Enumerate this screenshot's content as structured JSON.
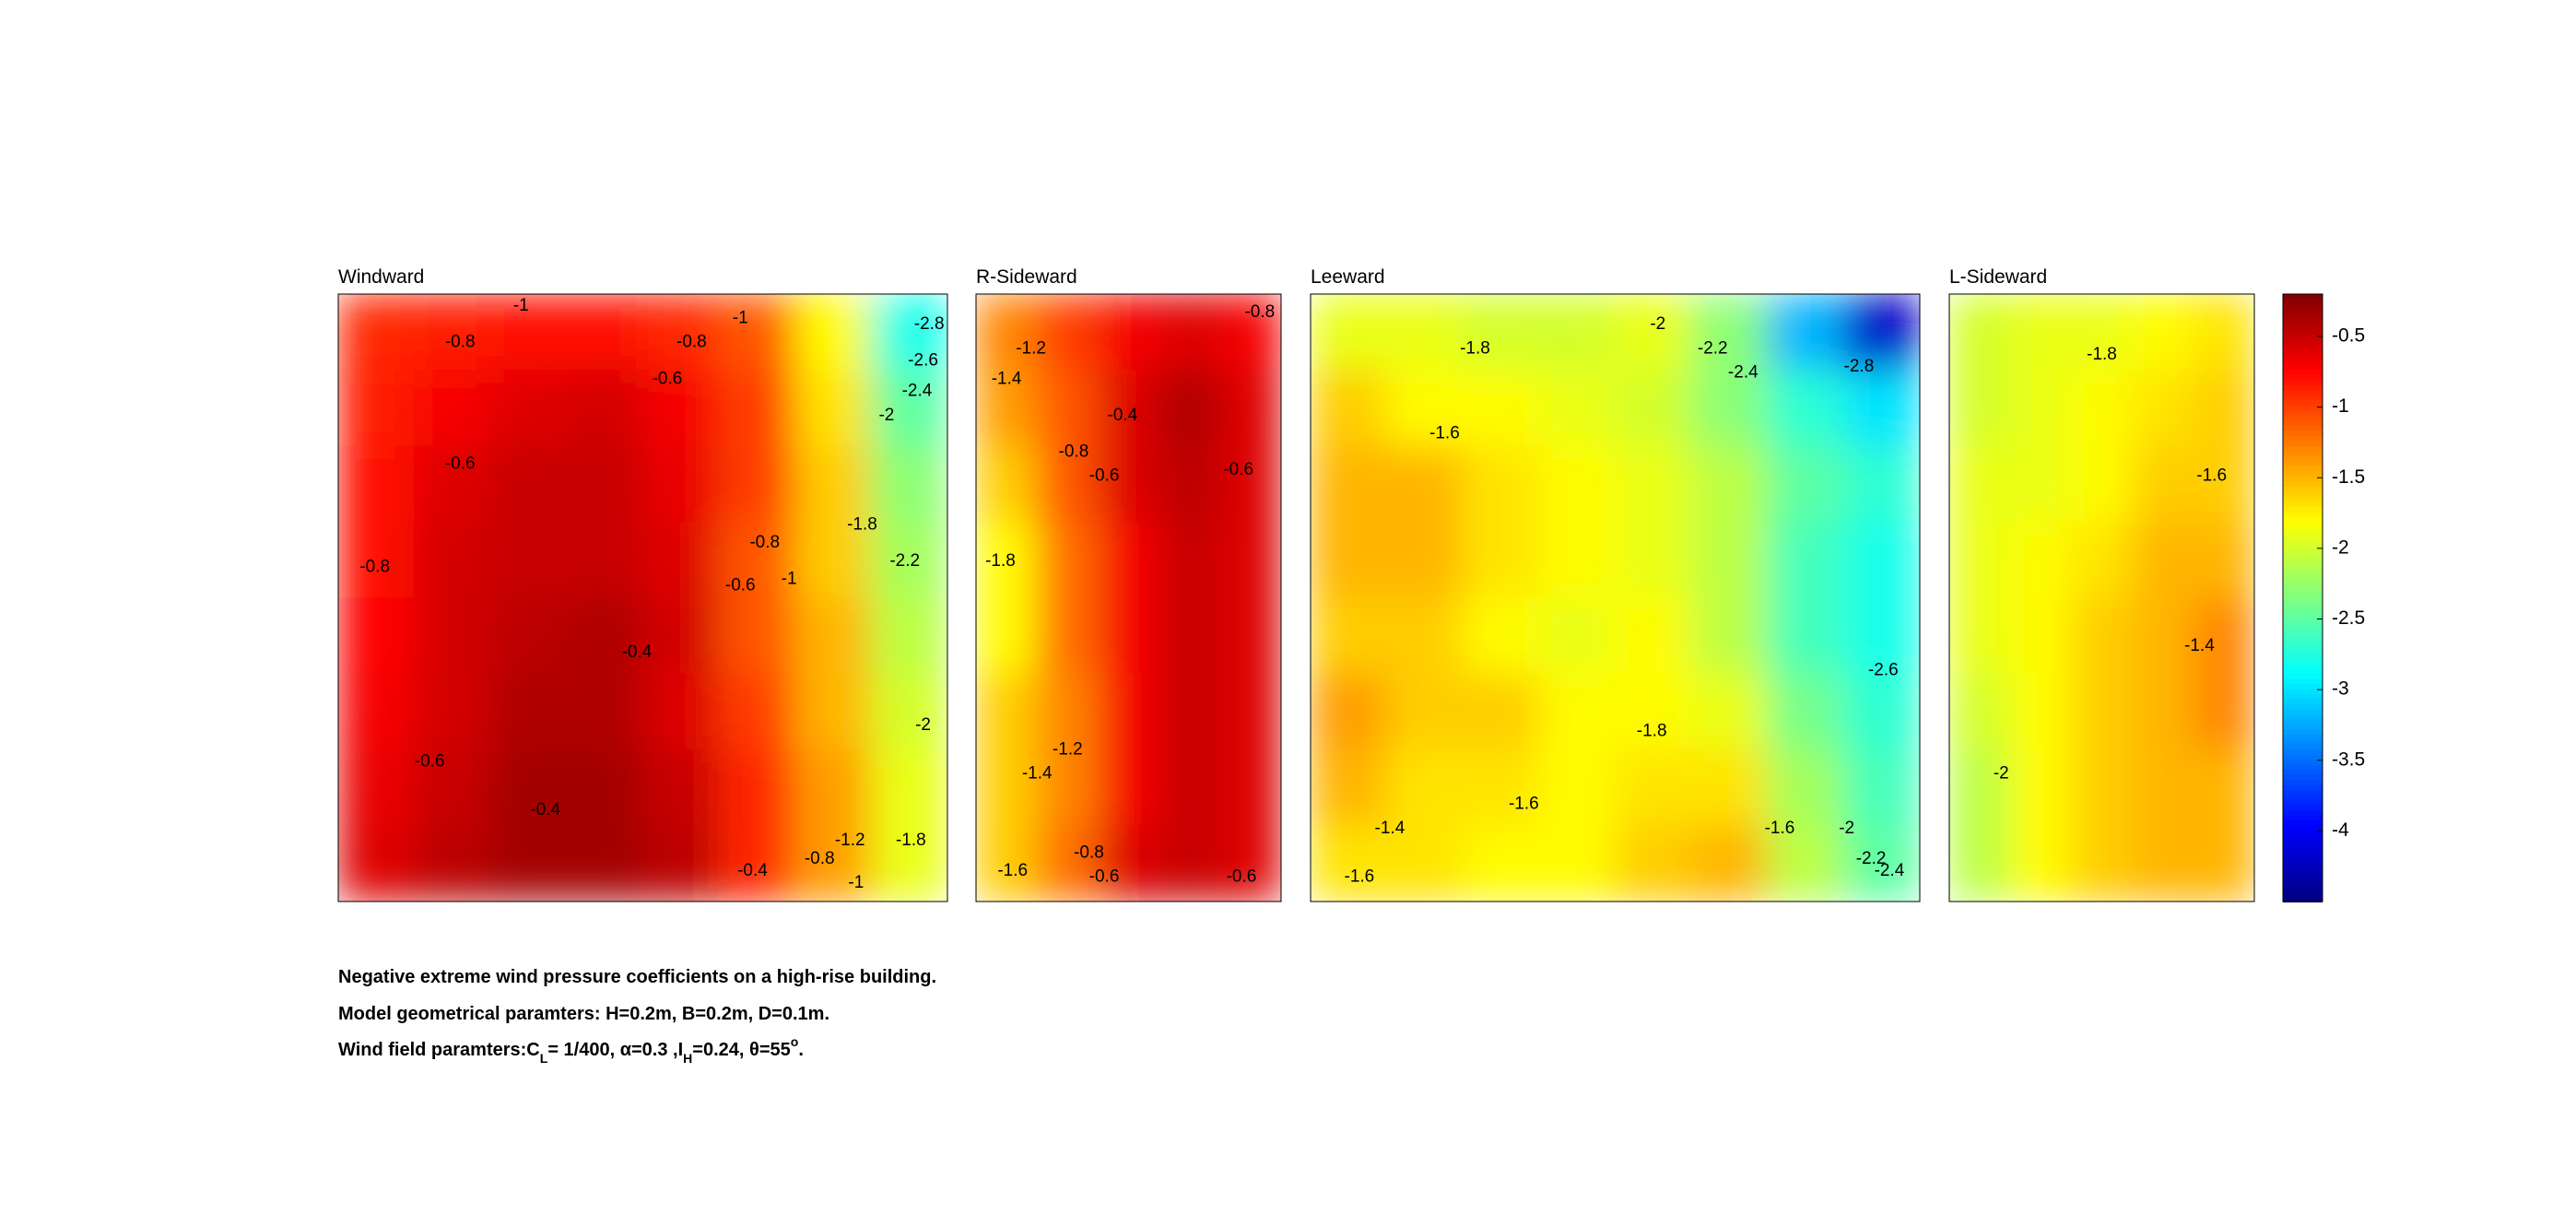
{
  "chart_data": {
    "type": "contour",
    "colormap": "jet",
    "clim": [
      -4.5,
      -0.2
    ],
    "colorbar_ticks": [
      -0.5,
      -1,
      -1.5,
      -2,
      -2.5,
      -3,
      -3.5,
      -4
    ],
    "panels": [
      {
        "title": "Windward",
        "z": [
          [
            -0.9,
            -0.85,
            -0.8,
            -0.8,
            -0.9,
            -1.1,
            -1.8,
            -2.8
          ],
          [
            -0.85,
            -0.7,
            -0.6,
            -0.55,
            -0.7,
            -1.0,
            -1.7,
            -2.5
          ],
          [
            -0.8,
            -0.6,
            -0.5,
            -0.5,
            -0.65,
            -1.0,
            -1.6,
            -2.3
          ],
          [
            -0.8,
            -0.55,
            -0.5,
            -0.5,
            -0.6,
            -1.1,
            -1.6,
            -2.2
          ],
          [
            -0.75,
            -0.55,
            -0.45,
            -0.4,
            -0.55,
            -1.1,
            -1.5,
            -2.1
          ],
          [
            -0.7,
            -0.55,
            -0.4,
            -0.4,
            -0.6,
            -1.0,
            -1.5,
            -2.0
          ],
          [
            -0.65,
            -0.5,
            -0.35,
            -0.35,
            -0.5,
            -0.9,
            -1.4,
            -1.9
          ],
          [
            -0.6,
            -0.45,
            -0.35,
            -0.35,
            -0.45,
            -0.9,
            -1.4,
            -1.9
          ]
        ],
        "contour_labels": [
          -1,
          -1,
          -0.8,
          -0.8,
          -0.6,
          -0.6,
          -0.8,
          -2.8,
          -2.6,
          -2.4,
          -2,
          -1.8,
          -0.8,
          -0.6,
          -1,
          -2.2,
          -0.4,
          -2,
          -0.6,
          -0.4,
          -0.4,
          -0.8,
          -1.2,
          -1,
          -1.8
        ]
      },
      {
        "title": "R-Sideward",
        "z": [
          [
            -1.3,
            -1.0,
            -0.7,
            -0.6,
            -0.7
          ],
          [
            -1.4,
            -1.1,
            -0.6,
            -0.4,
            -0.6
          ],
          [
            -1.6,
            -1.1,
            -0.6,
            -0.45,
            -0.6
          ],
          [
            -1.8,
            -1.2,
            -0.7,
            -0.5,
            -0.6
          ],
          [
            -1.8,
            -1.2,
            -0.7,
            -0.5,
            -0.6
          ],
          [
            -1.6,
            -1.3,
            -0.7,
            -0.5,
            -0.6
          ],
          [
            -1.6,
            -1.3,
            -0.7,
            -0.5,
            -0.6
          ],
          [
            -1.6,
            -1.2,
            -0.6,
            -0.5,
            -0.6
          ]
        ],
        "contour_labels": [
          -0.8,
          -1.2,
          -1.4,
          -0.4,
          -0.8,
          -0.6,
          -0.6,
          -1.8,
          -1.2,
          -1.4,
          -0.8,
          -0.6,
          -0.6,
          -1.6
        ]
      },
      {
        "title": "Leeward",
        "z": [
          [
            -1.9,
            -1.9,
            -2.0,
            -2.0,
            -1.9,
            -2.3,
            -3.2,
            -4.2
          ],
          [
            -1.6,
            -1.8,
            -1.8,
            -1.9,
            -2.0,
            -2.3,
            -2.7,
            -3.0
          ],
          [
            -1.5,
            -1.5,
            -1.7,
            -1.8,
            -1.9,
            -2.1,
            -2.5,
            -2.7
          ],
          [
            -1.5,
            -1.5,
            -1.7,
            -1.8,
            -1.9,
            -2.1,
            -2.6,
            -2.8
          ],
          [
            -1.6,
            -1.6,
            -1.8,
            -1.9,
            -1.8,
            -2.1,
            -2.6,
            -2.8
          ],
          [
            -1.4,
            -1.6,
            -1.6,
            -1.8,
            -1.8,
            -1.9,
            -2.4,
            -2.7
          ],
          [
            -1.5,
            -1.7,
            -1.7,
            -1.8,
            -1.7,
            -1.7,
            -2.2,
            -2.6
          ],
          [
            -1.7,
            -1.7,
            -1.8,
            -1.8,
            -1.6,
            -1.5,
            -2.1,
            -2.5
          ]
        ],
        "contour_labels": [
          -1.8,
          -2,
          -2.2,
          -2.4,
          -2.8,
          -1.6,
          -2.6,
          -1.8,
          -1.6,
          -1.4,
          -1.6,
          -2,
          -2.2,
          -2.4,
          -1.6
        ]
      },
      {
        "title": "L-Sideward",
        "z": [
          [
            -2.0,
            -1.9,
            -1.9,
            -1.8,
            -1.7
          ],
          [
            -2.0,
            -1.9,
            -1.8,
            -1.7,
            -1.6
          ],
          [
            -1.9,
            -1.9,
            -1.8,
            -1.6,
            -1.6
          ],
          [
            -1.9,
            -1.8,
            -1.7,
            -1.5,
            -1.5
          ],
          [
            -1.9,
            -1.8,
            -1.6,
            -1.5,
            -1.3
          ],
          [
            -2.0,
            -1.8,
            -1.6,
            -1.5,
            -1.3
          ],
          [
            -2.1,
            -1.8,
            -1.6,
            -1.5,
            -1.5
          ],
          [
            -2.1,
            -1.8,
            -1.6,
            -1.5,
            -1.5
          ]
        ],
        "contour_labels": [
          -1.8,
          -1.6,
          -1.4,
          -2
        ]
      }
    ]
  },
  "captions": {
    "line_1": "Negative extreme wind pressure coefficients on a high-rise building.",
    "line_2": "Model geometrical paramters: H=0.2m, B=0.2m, D=0.1m.",
    "line_3": [
      "Wind field paramters:C",
      "L",
      "= 1/400, α=0.3 ,I",
      "H",
      "=0.24, θ=55",
      "o",
      "."
    ]
  }
}
